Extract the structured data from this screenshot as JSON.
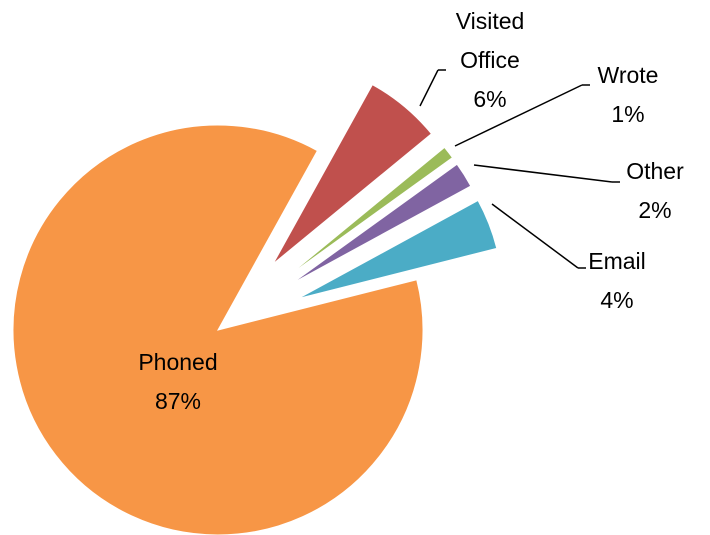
{
  "chart_data": {
    "type": "pie",
    "categories": [
      "Visited Office",
      "Wrote",
      "Other",
      "Email",
      "Phoned"
    ],
    "values": [
      6,
      1,
      2,
      4,
      87
    ],
    "value_labels": [
      "6%",
      "1%",
      "2%",
      "4%",
      "87%"
    ],
    "colors": [
      "#c0504d",
      "#9bbb59",
      "#8064a2",
      "#4bacc6",
      "#f79646"
    ]
  }
}
